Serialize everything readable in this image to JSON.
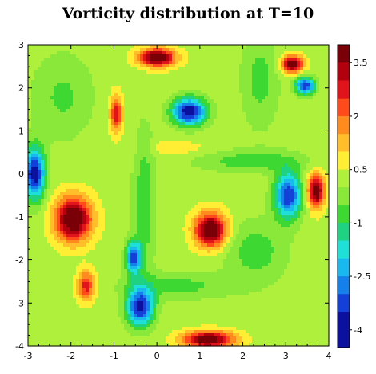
{
  "chart_data": {
    "type": "heatmap",
    "title": "Vorticity distribution at T=10",
    "xlabel": "",
    "ylabel": "",
    "xlim": [
      -3,
      4
    ],
    "ylim": [
      -4,
      3
    ],
    "x_ticks": [
      "-3",
      "-2",
      "-1",
      "0",
      "1",
      "2",
      "3",
      "4"
    ],
    "y_ticks": [
      "3",
      "2",
      "1",
      "0",
      "-1",
      "-2",
      "-3",
      "-4"
    ],
    "colorbar": {
      "range": [
        -4.5,
        4
      ],
      "tick_labels": [
        "3.5",
        "2",
        "0.5",
        "-1",
        "-2.5",
        "-4"
      ],
      "tick_values": [
        3.5,
        2,
        0.5,
        -1,
        -2.5,
        -4
      ],
      "levels": [
        {
          "min": 3.5,
          "color": "#7a0008"
        },
        {
          "min": 3.0,
          "color": "#b2000e"
        },
        {
          "min": 2.5,
          "color": "#e0141a"
        },
        {
          "min": 2.0,
          "color": "#ff4a1c"
        },
        {
          "min": 1.5,
          "color": "#ff8a1e"
        },
        {
          "min": 1.0,
          "color": "#ffbe2a"
        },
        {
          "min": 0.5,
          "color": "#ffee33"
        },
        {
          "min": 0.0,
          "color": "#aef03c"
        },
        {
          "min": -0.5,
          "color": "#8ae83a"
        },
        {
          "min": -1.0,
          "color": "#3ed832"
        },
        {
          "min": -1.5,
          "color": "#1ed282"
        },
        {
          "min": -2.0,
          "color": "#1fe0d8"
        },
        {
          "min": -2.5,
          "color": "#17b9ee"
        },
        {
          "min": -3.0,
          "color": "#1680ea"
        },
        {
          "min": -3.5,
          "color": "#1440d8"
        },
        {
          "min": -9.0,
          "color": "#0c109e"
        }
      ]
    },
    "background_value": 0.3,
    "vortices": [
      {
        "x": 0.0,
        "y": 2.7,
        "strength": 4.0,
        "sx": 0.3,
        "sy": 0.15
      },
      {
        "x": 0.75,
        "y": 1.45,
        "strength": -4.4,
        "sx": 0.28,
        "sy": 0.22
      },
      {
        "x": -0.95,
        "y": 1.4,
        "strength": 2.6,
        "sx": 0.1,
        "sy": 0.3
      },
      {
        "x": 3.15,
        "y": 2.55,
        "strength": 3.8,
        "sx": 0.18,
        "sy": 0.14
      },
      {
        "x": 3.45,
        "y": 2.05,
        "strength": -3.8,
        "sx": 0.16,
        "sy": 0.14
      },
      {
        "x": -2.85,
        "y": 0.0,
        "strength": -4.2,
        "sx": 0.17,
        "sy": 0.42
      },
      {
        "x": -1.95,
        "y": -1.05,
        "strength": 4.2,
        "sx": 0.3,
        "sy": 0.36
      },
      {
        "x": 1.25,
        "y": -1.3,
        "strength": 4.2,
        "sx": 0.26,
        "sy": 0.28
      },
      {
        "x": 3.05,
        "y": -0.5,
        "strength": -3.8,
        "sx": 0.22,
        "sy": 0.38
      },
      {
        "x": 3.7,
        "y": -0.4,
        "strength": 3.8,
        "sx": 0.14,
        "sy": 0.28
      },
      {
        "x": -0.55,
        "y": -1.95,
        "strength": -3.6,
        "sx": 0.12,
        "sy": 0.26
      },
      {
        "x": -1.65,
        "y": -2.6,
        "strength": 2.5,
        "sx": 0.14,
        "sy": 0.24
      },
      {
        "x": -0.4,
        "y": -3.1,
        "strength": -4.0,
        "sx": 0.22,
        "sy": 0.3
      },
      {
        "x": 1.2,
        "y": -3.85,
        "strength": 3.8,
        "sx": 0.42,
        "sy": 0.14
      },
      {
        "x": 0.4,
        "y": 0.6,
        "strength": 0.6,
        "sx": 0.5,
        "sy": 0.12
      },
      {
        "x": -0.3,
        "y": -0.7,
        "strength": -1.2,
        "sx": 0.18,
        "sy": 1.2
      },
      {
        "x": 2.2,
        "y": 0.3,
        "strength": -1.1,
        "sx": 0.9,
        "sy": 0.18
      },
      {
        "x": 2.3,
        "y": -1.8,
        "strength": -1.1,
        "sx": 0.5,
        "sy": 0.5
      },
      {
        "x": 0.5,
        "y": -2.6,
        "strength": -1.0,
        "sx": 0.9,
        "sy": 0.22
      },
      {
        "x": -2.2,
        "y": 1.8,
        "strength": -0.9,
        "sx": 0.5,
        "sy": 0.7
      },
      {
        "x": 2.4,
        "y": 2.2,
        "strength": -1.0,
        "sx": 0.3,
        "sy": 0.8
      }
    ]
  }
}
